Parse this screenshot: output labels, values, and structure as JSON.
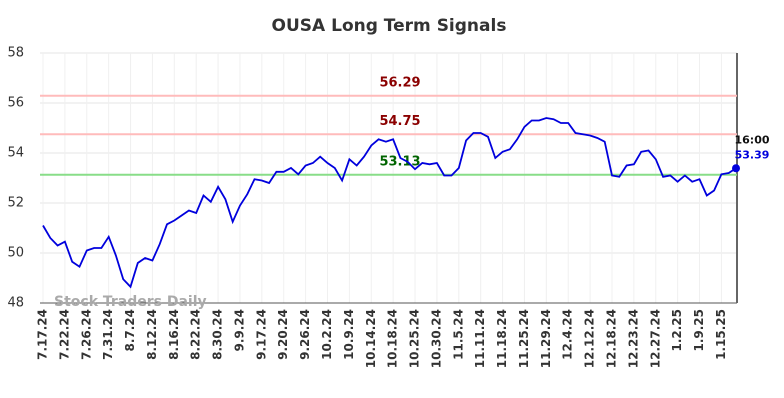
{
  "chart_data": {
    "type": "line",
    "title": "OUSA Long Term Signals",
    "x": [
      "7.17.24",
      null,
      null,
      "7.22.24",
      null,
      null,
      "7.26.24",
      null,
      null,
      "7.31.24",
      null,
      null,
      "8.7.24",
      null,
      null,
      "8.12.24",
      null,
      null,
      "8.16.24",
      null,
      null,
      "8.22.24",
      null,
      null,
      "8.30.24",
      null,
      null,
      "9.9.24",
      null,
      null,
      "9.17.24",
      null,
      null,
      "9.20.24",
      null,
      null,
      "9.26.24",
      null,
      null,
      "10.2.24",
      null,
      null,
      "10.9.24",
      null,
      null,
      "10.14.24",
      null,
      null,
      "10.18.24",
      null,
      null,
      "10.25.24",
      null,
      null,
      "10.30.24",
      null,
      null,
      "11.5.24",
      null,
      null,
      "11.11.24",
      null,
      null,
      "11.18.24",
      null,
      null,
      "11.25.24",
      null,
      null,
      "11.29.24",
      null,
      null,
      "12.4.24",
      null,
      null,
      "12.12.24",
      null,
      null,
      "12.18.24",
      null,
      null,
      "12.23.24",
      null,
      null,
      "12.27.24",
      null,
      null,
      "1.2.25",
      null,
      null,
      "1.9.25",
      null,
      null,
      "1.15.25",
      null,
      null
    ],
    "series": [
      {
        "color": "#0000dd",
        "values": [
          51.1,
          50.6,
          50.3,
          50.45,
          49.65,
          49.45,
          50.1,
          50.2,
          50.2,
          50.65,
          49.9,
          48.95,
          48.65,
          49.6,
          49.8,
          49.7,
          50.35,
          51.15,
          51.3,
          51.5,
          51.7,
          51.6,
          52.3,
          52.05,
          52.65,
          52.15,
          51.25,
          51.9,
          52.35,
          52.95,
          52.9,
          52.8,
          53.25,
          53.25,
          53.4,
          53.15,
          53.5,
          53.6,
          53.85,
          53.6,
          53.4,
          52.9,
          53.75,
          53.5,
          53.85,
          54.3,
          54.55,
          54.45,
          54.55,
          53.8,
          53.65,
          53.35,
          53.6,
          53.55,
          53.6,
          53.1,
          53.1,
          53.4,
          54.5,
          54.8,
          54.8,
          54.65,
          53.8,
          54.05,
          54.15,
          54.55,
          55.05,
          55.3,
          55.3,
          55.4,
          55.35,
          55.2,
          55.2,
          54.8,
          54.75,
          54.7,
          54.6,
          54.45,
          53.1,
          53.05,
          53.5,
          53.55,
          54.05,
          54.1,
          53.75,
          53.05,
          53.1,
          52.85,
          53.1,
          52.85,
          52.95,
          52.3,
          52.5,
          53.15,
          53.2,
          53.39
        ]
      }
    ],
    "hlines": [
      {
        "value": 56.29,
        "color": "#ffbbbb",
        "label_color": "#8b0000"
      },
      {
        "value": 54.75,
        "color": "#ffbbbb",
        "label_color": "#8b0000"
      },
      {
        "value": 53.13,
        "color": "#88dd88",
        "label_color": "#006400"
      }
    ],
    "last_time": "16:00",
    "watermark": "Stock Traders Daily",
    "ylim": [
      48,
      58
    ],
    "yticks": [
      48,
      50,
      52,
      54,
      56,
      58
    ],
    "grid": true
  }
}
